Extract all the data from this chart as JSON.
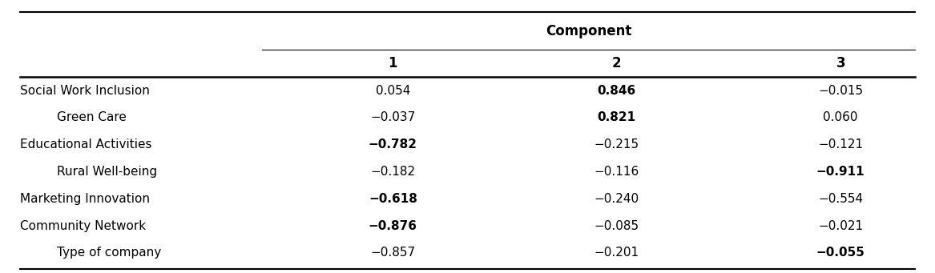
{
  "title": "Component",
  "col_headers": [
    "1",
    "2",
    "3"
  ],
  "row_labels": [
    "Social Work Inclusion",
    "Green Care",
    "Educational Activities",
    "Rural Well-being",
    "Marketing Innovation",
    "Community Network",
    "Type of company"
  ],
  "row_indent": [
    false,
    true,
    false,
    true,
    false,
    false,
    true
  ],
  "values": [
    [
      "0.054",
      "0.846",
      "−0.015"
    ],
    [
      "−0.037",
      "0.821",
      "0.060"
    ],
    [
      "−0.782",
      "−0.215",
      "−0.121"
    ],
    [
      "−0.182",
      "−0.116",
      "−0.911"
    ],
    [
      "−0.618",
      "−0.240",
      "−0.554"
    ],
    [
      "−0.876",
      "−0.085",
      "−0.021"
    ],
    [
      "−0.857",
      "−0.201",
      "−0.055"
    ]
  ],
  "bold": [
    [
      false,
      true,
      false
    ],
    [
      false,
      true,
      false
    ],
    [
      true,
      false,
      false
    ],
    [
      false,
      false,
      true
    ],
    [
      true,
      false,
      false
    ],
    [
      true,
      false,
      false
    ],
    [
      false,
      false,
      true
    ]
  ],
  "bg_color": "#ffffff",
  "text_color": "#000000",
  "font_size": 11,
  "header_font_size": 12
}
